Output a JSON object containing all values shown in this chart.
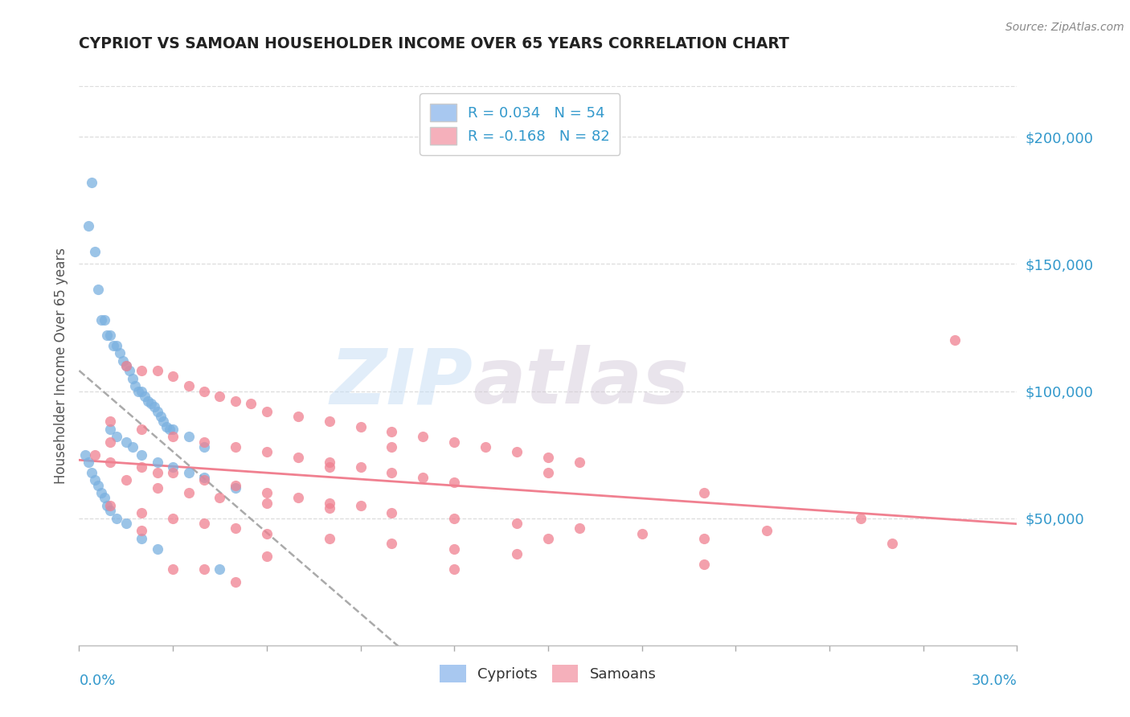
{
  "title": "CYPRIOT VS SAMOAN HOUSEHOLDER INCOME OVER 65 YEARS CORRELATION CHART",
  "source": "Source: ZipAtlas.com",
  "ylabel": "Householder Income Over 65 years",
  "xlim": [
    0.0,
    30.0
  ],
  "ylim": [
    0,
    220000
  ],
  "yticks": [
    50000,
    100000,
    150000,
    200000
  ],
  "ytick_labels": [
    "$50,000",
    "$100,000",
    "$150,000",
    "$200,000"
  ],
  "cypriot_R": "0.034",
  "cypriot_N": "54",
  "samoan_R": "-0.168",
  "samoan_N": "82",
  "cypriot_dot_color": "#7ab0e0",
  "cypriot_legend_color": "#a8c8f0",
  "samoan_dot_color": "#f08090",
  "samoan_legend_color": "#f5b0bb",
  "trend_cypriot_color": "#aaaaaa",
  "trend_samoan_color": "#f08090",
  "legend_text_color": "#3399cc",
  "axis_label_color": "#3399cc",
  "title_color": "#222222",
  "source_color": "#888888",
  "ylabel_color": "#555555",
  "grid_color": "#dddddd",
  "spine_color": "#bbbbbb",
  "cypriot_points_x": [
    0.3,
    0.5,
    0.4,
    0.8,
    0.9,
    1.0,
    1.1,
    1.2,
    1.3,
    1.4,
    0.6,
    0.7,
    1.5,
    1.6,
    1.7,
    1.8,
    1.9,
    2.0,
    2.1,
    2.2,
    2.3,
    2.4,
    2.5,
    2.6,
    2.7,
    2.8,
    2.9,
    3.0,
    3.5,
    4.0,
    1.0,
    1.2,
    1.5,
    1.7,
    2.0,
    2.5,
    3.0,
    3.5,
    4.0,
    5.0,
    0.2,
    0.3,
    0.4,
    0.5,
    0.6,
    0.7,
    0.8,
    0.9,
    1.0,
    1.2,
    1.5,
    2.0,
    2.5,
    4.5
  ],
  "cypriot_points_y": [
    165000,
    155000,
    182000,
    128000,
    122000,
    122000,
    118000,
    118000,
    115000,
    112000,
    140000,
    128000,
    110000,
    108000,
    105000,
    102000,
    100000,
    100000,
    98000,
    96000,
    95000,
    94000,
    92000,
    90000,
    88000,
    86000,
    85000,
    85000,
    82000,
    78000,
    85000,
    82000,
    80000,
    78000,
    75000,
    72000,
    70000,
    68000,
    66000,
    62000,
    75000,
    72000,
    68000,
    65000,
    63000,
    60000,
    58000,
    55000,
    53000,
    50000,
    48000,
    42000,
    38000,
    30000
  ],
  "samoan_points_x": [
    1.5,
    2.0,
    2.5,
    3.0,
    3.5,
    4.0,
    4.5,
    5.0,
    5.5,
    6.0,
    7.0,
    8.0,
    9.0,
    10.0,
    11.0,
    12.0,
    13.0,
    14.0,
    15.0,
    16.0,
    1.0,
    2.0,
    3.0,
    4.0,
    5.0,
    6.0,
    7.0,
    8.0,
    9.0,
    10.0,
    11.0,
    12.0,
    0.5,
    1.0,
    2.0,
    3.0,
    4.0,
    5.0,
    6.0,
    7.0,
    8.0,
    9.0,
    10.0,
    12.0,
    14.0,
    16.0,
    18.0,
    20.0,
    1.0,
    2.0,
    3.0,
    4.0,
    5.0,
    6.0,
    8.0,
    10.0,
    12.0,
    14.0,
    1.5,
    2.5,
    3.5,
    4.5,
    6.0,
    8.0,
    10.0,
    15.0,
    20.0,
    22.0,
    25.0,
    3.0,
    5.0,
    8.0,
    12.0,
    15.0,
    20.0,
    2.0,
    4.0,
    6.0,
    1.0,
    2.5,
    28.0,
    26.0
  ],
  "samoan_points_y": [
    110000,
    108000,
    108000,
    106000,
    102000,
    100000,
    98000,
    96000,
    95000,
    92000,
    90000,
    88000,
    86000,
    84000,
    82000,
    80000,
    78000,
    76000,
    74000,
    72000,
    88000,
    85000,
    82000,
    80000,
    78000,
    76000,
    74000,
    72000,
    70000,
    68000,
    66000,
    64000,
    75000,
    72000,
    70000,
    68000,
    65000,
    63000,
    60000,
    58000,
    56000,
    55000,
    52000,
    50000,
    48000,
    46000,
    44000,
    42000,
    55000,
    52000,
    50000,
    48000,
    46000,
    44000,
    42000,
    40000,
    38000,
    36000,
    65000,
    62000,
    60000,
    58000,
    56000,
    54000,
    78000,
    42000,
    60000,
    45000,
    50000,
    30000,
    25000,
    70000,
    30000,
    68000,
    32000,
    45000,
    30000,
    35000,
    80000,
    68000,
    120000,
    40000
  ]
}
